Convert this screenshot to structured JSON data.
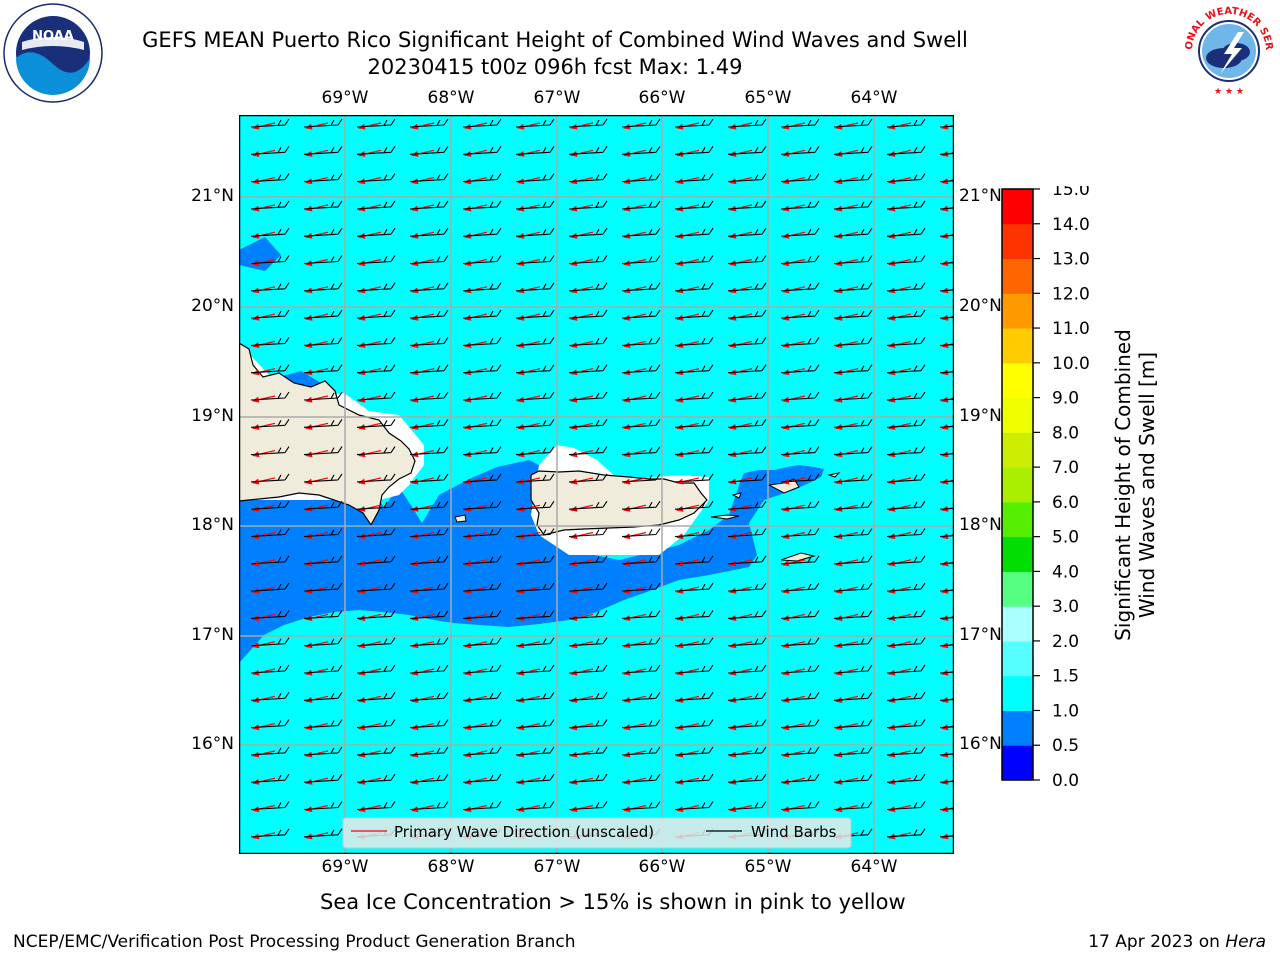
{
  "header": {
    "title_line1": "GEFS MEAN Puerto Rico Significant Height of Combined Wind Waves and Swell",
    "title_line2": "20230415 t00z 096h fcst   Max: 1.49"
  },
  "logos": {
    "left": {
      "name": "NOAA",
      "ring_text": "NATIONAL OCEANIC AND ATMOSPHERIC ADMINISTRATION · U.S. DEPARTMENT OF COMMERCE"
    },
    "right": {
      "name": "NATIONAL WEATHER SERVICE"
    }
  },
  "map": {
    "lon_labels": [
      "69°W",
      "68°W",
      "67°W",
      "66°W",
      "65°W",
      "64°W"
    ],
    "lat_labels": [
      "21°N",
      "20°N",
      "19°N",
      "18°N",
      "17°N",
      "16°N"
    ],
    "legend": {
      "wave_label": "Primary Wave Direction (unscaled)",
      "barb_label": "Wind Barbs"
    },
    "colors": {
      "ocean": "#00ffff",
      "band_0_5_1": "#0080ff",
      "land": "#efecdc",
      "wave_arrows": "#ff0000",
      "wind_barbs": "#000000"
    }
  },
  "colorbar": {
    "label_line1": "Significant Height of Combined",
    "label_line2": "Wind Waves and Swell [m]",
    "ticks": [
      "0.0",
      "0.5",
      "1.0",
      "1.5",
      "2.0",
      "3.0",
      "4.0",
      "5.0",
      "6.0",
      "7.0",
      "8.0",
      "9.0",
      "10.0",
      "11.0",
      "12.0",
      "13.0",
      "14.0",
      "15.0"
    ],
    "colors": [
      "#0000ff",
      "#0080ff",
      "#00ffff",
      "#55ffff",
      "#aaffff",
      "#55ff80",
      "#00dd00",
      "#55ee00",
      "#aaee00",
      "#ccee00",
      "#eeff00",
      "#ffff00",
      "#ffcc00",
      "#ff9900",
      "#ff6600",
      "#ff3300",
      "#ff0000"
    ]
  },
  "caption": "Sea Ice Concentration > 15% is shown in pink to yellow",
  "footer": {
    "left": "NCEP/EMC/Verification Post Processing Product Generation Branch",
    "date": "17 Apr 2023 on ",
    "host": "Hera"
  }
}
